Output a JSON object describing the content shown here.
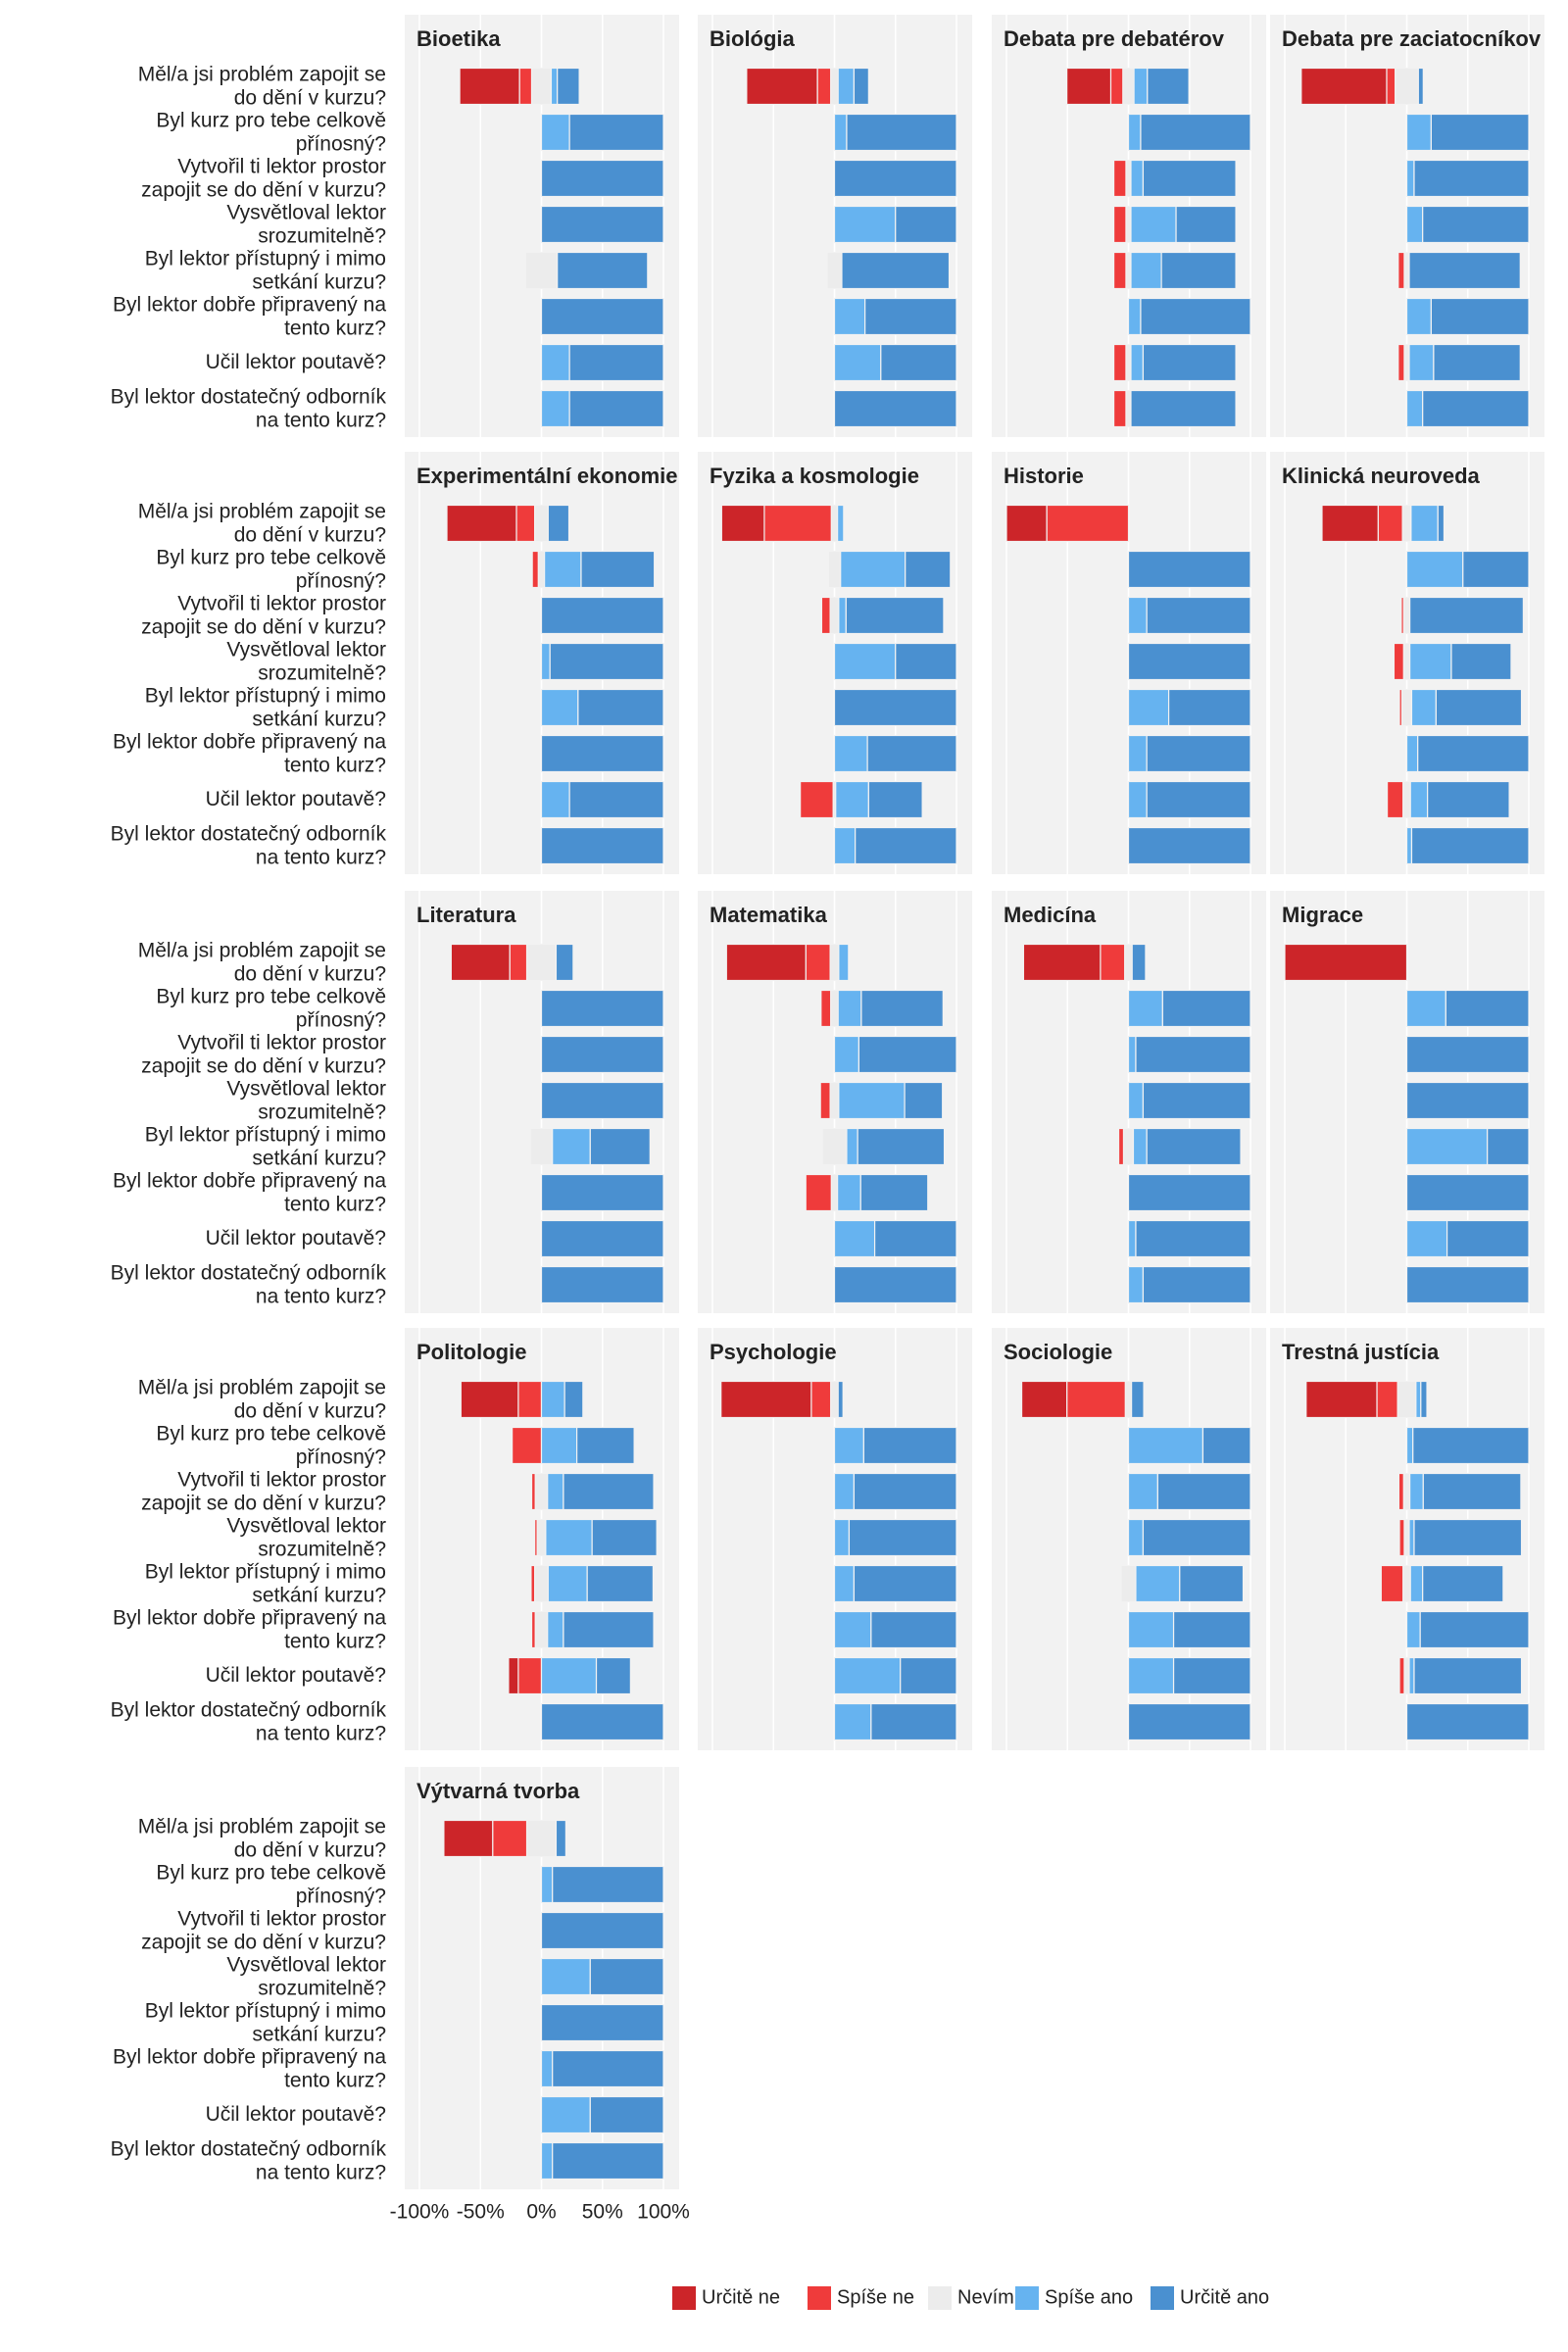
{
  "chart_data": {
    "type": "diverging-stacked-bar",
    "categories": [
      "Měl/a jsi problém zapojit se\ndo dění v kurzu?",
      "Byl kurz pro tebe celkově\npřínosný?",
      "Vytvořil ti lektor prostor\nzapojit se do dění v kurzu?",
      "Vysvětloval lektor\nsrozumitelně?",
      "Byl lektor přístupný i mimo\nsetkání kurzu?",
      "Byl lektor dobře připravený na\ntento kurz?",
      "Učil lektor poutavě?",
      "Byl lektor dostatečný odborník\nna tento kurz?"
    ],
    "series": [
      {
        "name": "Určitě ne",
        "color": "#cc2529"
      },
      {
        "name": "Spíše ne",
        "color": "#ef3b3b"
      },
      {
        "name": "Nevím",
        "color": "#ececec"
      },
      {
        "name": "Spíše ano",
        "color": "#66b3f0"
      },
      {
        "name": "Určitě ano",
        "color": "#4a90d0"
      }
    ],
    "xlim": [
      -100,
      100
    ],
    "xticks": [
      {
        "value": -100,
        "label": "-100%"
      },
      {
        "value": -50,
        "label": "-50%"
      },
      {
        "value": 0,
        "label": "0%"
      },
      {
        "value": 50,
        "label": "50%"
      },
      {
        "value": 100,
        "label": "100%"
      }
    ],
    "grid": true,
    "legend_position": "bottom",
    "panels": [
      {
        "title": "Bioetika",
        "values": [
          [
            49,
            0,
            0,
            0,
            0,
            0,
            0,
            0
          ],
          [
            10,
            0,
            0,
            0,
            0,
            0,
            0,
            0
          ],
          [
            16,
            0,
            0,
            0,
            26,
            0,
            0,
            0
          ],
          [
            5,
            23,
            0,
            0,
            0,
            0,
            23,
            23
          ],
          [
            18,
            77,
            100,
            100,
            74,
            100,
            77,
            77
          ]
        ]
      },
      {
        "title": "Biológia",
        "values": [
          [
            58,
            0,
            0,
            0,
            0,
            0,
            0,
            0
          ],
          [
            11,
            0,
            0,
            0,
            0,
            0,
            0,
            0
          ],
          [
            6,
            0,
            0,
            0,
            12,
            0,
            0,
            0
          ],
          [
            13,
            10,
            0,
            50,
            0,
            25,
            38,
            0
          ],
          [
            12,
            90,
            100,
            50,
            88,
            75,
            62,
            100
          ]
        ]
      },
      {
        "title": "Debata pre debatérov",
        "values": [
          [
            36,
            0,
            0,
            0,
            0,
            0,
            0,
            0
          ],
          [
            10,
            0,
            10,
            10,
            10,
            0,
            10,
            10
          ],
          [
            9,
            0,
            4,
            4,
            4,
            0,
            4,
            4
          ],
          [
            11,
            10,
            10,
            37,
            25,
            10,
            10,
            0
          ],
          [
            34,
            90,
            76,
            49,
            61,
            90,
            76,
            86
          ]
        ]
      },
      {
        "title": "Debata pre zaciatocníkov",
        "values": [
          [
            70,
            0,
            0,
            0,
            0,
            0,
            0,
            0
          ],
          [
            7,
            0,
            0,
            0,
            5,
            0,
            5,
            0
          ],
          [
            19,
            0,
            0,
            0,
            4,
            0,
            4,
            0
          ],
          [
            0,
            20,
            6,
            13,
            0,
            20,
            20,
            13
          ],
          [
            4,
            80,
            94,
            87,
            91,
            80,
            71,
            87
          ]
        ]
      },
      {
        "title": "Experimentální ekonomie",
        "values": [
          [
            57,
            0,
            0,
            0,
            0,
            0,
            0,
            0
          ],
          [
            15,
            5,
            0,
            0,
            0,
            0,
            0,
            0
          ],
          [
            11,
            5,
            0,
            0,
            0,
            0,
            0,
            0
          ],
          [
            0,
            30,
            0,
            7,
            30,
            0,
            23,
            0
          ],
          [
            17,
            60,
            100,
            93,
            70,
            100,
            77,
            100
          ]
        ]
      },
      {
        "title": "Fyzika a kosmologie",
        "values": [
          [
            35,
            0,
            0,
            0,
            0,
            0,
            0,
            0
          ],
          [
            55,
            0,
            7,
            0,
            0,
            0,
            27,
            0
          ],
          [
            5,
            10,
            7,
            0,
            0,
            0,
            2,
            0
          ],
          [
            5,
            53,
            6,
            50,
            0,
            27,
            27,
            17
          ],
          [
            0,
            37,
            80,
            50,
            100,
            73,
            44,
            83
          ]
        ]
      },
      {
        "title": "Historie",
        "values": [
          [
            33,
            0,
            0,
            0,
            0,
            0,
            0,
            0
          ],
          [
            67,
            0,
            0,
            0,
            0,
            0,
            0,
            0
          ],
          [
            0,
            0,
            0,
            0,
            0,
            0,
            0,
            0
          ],
          [
            0,
            0,
            15,
            0,
            33,
            15,
            15,
            0
          ],
          [
            0,
            100,
            85,
            100,
            67,
            85,
            85,
            100
          ]
        ]
      },
      {
        "title": "Klinická neuroveda",
        "values": [
          [
            46,
            0,
            0,
            0,
            0,
            0,
            0,
            0
          ],
          [
            20,
            0,
            2,
            8,
            2,
            0,
            13,
            0
          ],
          [
            7,
            0,
            5,
            5,
            8,
            0,
            6,
            0
          ],
          [
            22,
            46,
            0,
            34,
            20,
            9,
            14,
            4
          ],
          [
            5,
            54,
            93,
            49,
            70,
            91,
            67,
            96
          ]
        ]
      },
      {
        "title": "Literatura",
        "values": [
          [
            48,
            0,
            0,
            0,
            0,
            0,
            0,
            0
          ],
          [
            14,
            0,
            0,
            0,
            0,
            0,
            0,
            0
          ],
          [
            24,
            0,
            0,
            0,
            18,
            0,
            0,
            0
          ],
          [
            0,
            0,
            0,
            0,
            31,
            0,
            0,
            0
          ],
          [
            14,
            100,
            100,
            100,
            49,
            100,
            100,
            100
          ]
        ]
      },
      {
        "title": "Matematika",
        "values": [
          [
            65,
            0,
            0,
            0,
            0,
            0,
            0,
            0
          ],
          [
            20,
            8,
            0,
            8,
            0,
            21,
            0,
            0
          ],
          [
            7,
            6,
            0,
            7,
            20,
            5,
            0,
            0
          ],
          [
            8,
            19,
            20,
            54,
            9,
            19,
            33,
            0
          ],
          [
            0,
            67,
            80,
            31,
            71,
            55,
            67,
            100
          ]
        ]
      },
      {
        "title": "Medicína",
        "values": [
          [
            63,
            0,
            0,
            0,
            0,
            0,
            0,
            0
          ],
          [
            20,
            0,
            0,
            0,
            4,
            0,
            0,
            0
          ],
          [
            6,
            0,
            0,
            0,
            8,
            0,
            0,
            0
          ],
          [
            0,
            28,
            6,
            12,
            11,
            0,
            6,
            12
          ],
          [
            11,
            72,
            94,
            88,
            77,
            100,
            94,
            88
          ]
        ]
      },
      {
        "title": "Migrace",
        "values": [
          [
            100,
            0,
            0,
            0,
            0,
            0,
            0,
            0
          ],
          [
            0,
            0,
            0,
            0,
            0,
            0,
            0,
            0
          ],
          [
            0,
            0,
            0,
            0,
            0,
            0,
            0,
            0
          ],
          [
            0,
            32,
            0,
            0,
            66,
            0,
            33,
            0
          ],
          [
            0,
            68,
            100,
            100,
            34,
            100,
            67,
            100
          ]
        ]
      },
      {
        "title": "Politologie",
        "values": [
          [
            47,
            0,
            0,
            0,
            0,
            0,
            8,
            0
          ],
          [
            19,
            24,
            3,
            2,
            3,
            3,
            19,
            0
          ],
          [
            0,
            0,
            10,
            7,
            11,
            10,
            0,
            0
          ],
          [
            19,
            29,
            13,
            38,
            32,
            13,
            45,
            0
          ],
          [
            15,
            47,
            74,
            53,
            54,
            74,
            28,
            100
          ]
        ]
      },
      {
        "title": "Psychologie",
        "values": [
          [
            74,
            0,
            0,
            0,
            0,
            0,
            0,
            0
          ],
          [
            16,
            0,
            0,
            0,
            0,
            0,
            0,
            0
          ],
          [
            6,
            0,
            0,
            0,
            0,
            0,
            0,
            0
          ],
          [
            0,
            24,
            16,
            12,
            16,
            30,
            54,
            30
          ],
          [
            4,
            76,
            84,
            88,
            84,
            70,
            46,
            70
          ]
        ]
      },
      {
        "title": "Sociologie",
        "values": [
          [
            37,
            0,
            0,
            0,
            0,
            0,
            0,
            0
          ],
          [
            48,
            0,
            0,
            0,
            0,
            0,
            0,
            0
          ],
          [
            5,
            0,
            0,
            0,
            12,
            0,
            0,
            0
          ],
          [
            0,
            61,
            24,
            12,
            36,
            37,
            37,
            0
          ],
          [
            10,
            39,
            76,
            88,
            52,
            63,
            63,
            100
          ]
        ]
      },
      {
        "title": "Trestná justícia",
        "values": [
          [
            58,
            0,
            0,
            0,
            0,
            0,
            0,
            0
          ],
          [
            17,
            0,
            4,
            4,
            18,
            0,
            4,
            0
          ],
          [
            15,
            0,
            5,
            4,
            6,
            0,
            4,
            0
          ],
          [
            4,
            5,
            11,
            4,
            10,
            11,
            4,
            0
          ],
          [
            5,
            95,
            80,
            88,
            66,
            89,
            88,
            100
          ]
        ]
      },
      {
        "title": "Výtvarná tvorba",
        "values": [
          [
            40,
            0,
            0,
            0,
            0,
            0,
            0,
            0
          ],
          [
            28,
            0,
            0,
            0,
            0,
            0,
            0,
            0
          ],
          [
            24,
            0,
            0,
            0,
            0,
            0,
            0,
            0
          ],
          [
            0,
            9,
            0,
            40,
            0,
            9,
            40,
            9
          ],
          [
            8,
            91,
            100,
            60,
            100,
            91,
            60,
            91
          ]
        ]
      }
    ]
  }
}
